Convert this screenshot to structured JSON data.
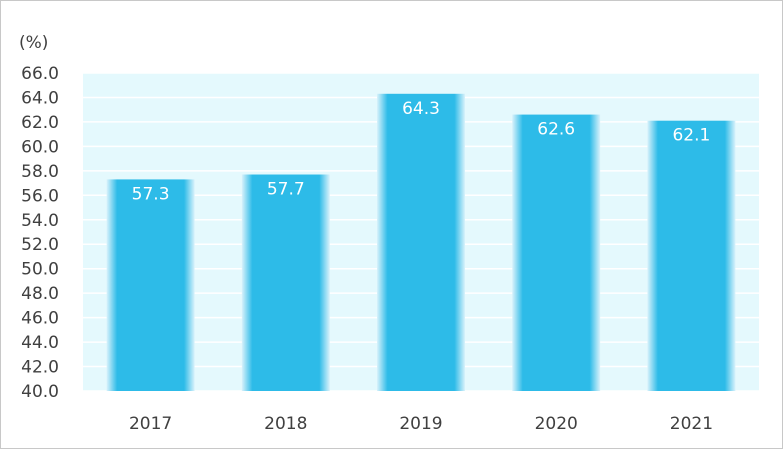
{
  "chart_data": {
    "type": "bar",
    "unit_label": "(%)",
    "categories": [
      "2017",
      "2018",
      "2019",
      "2020",
      "2021"
    ],
    "values": [
      57.3,
      57.7,
      64.3,
      62.6,
      62.1
    ],
    "value_labels": [
      "57.3",
      "57.7",
      "64.3",
      "62.6",
      "62.1"
    ],
    "ylim": [
      40.0,
      66.0
    ],
    "yticks": [
      "40.0",
      "42.0",
      "44.0",
      "46.0",
      "48.0",
      "50.0",
      "52.0",
      "54.0",
      "56.0",
      "58.0",
      "60.0",
      "62.0",
      "64.0",
      "66.0"
    ],
    "grid": true,
    "title": "",
    "xlabel": "",
    "ylabel": "",
    "colors": {
      "bar": "#2dbbe8",
      "bar_edge": "#d9f2fb",
      "plot_background": "#e4f9fd",
      "grid": "#ffffff"
    }
  }
}
